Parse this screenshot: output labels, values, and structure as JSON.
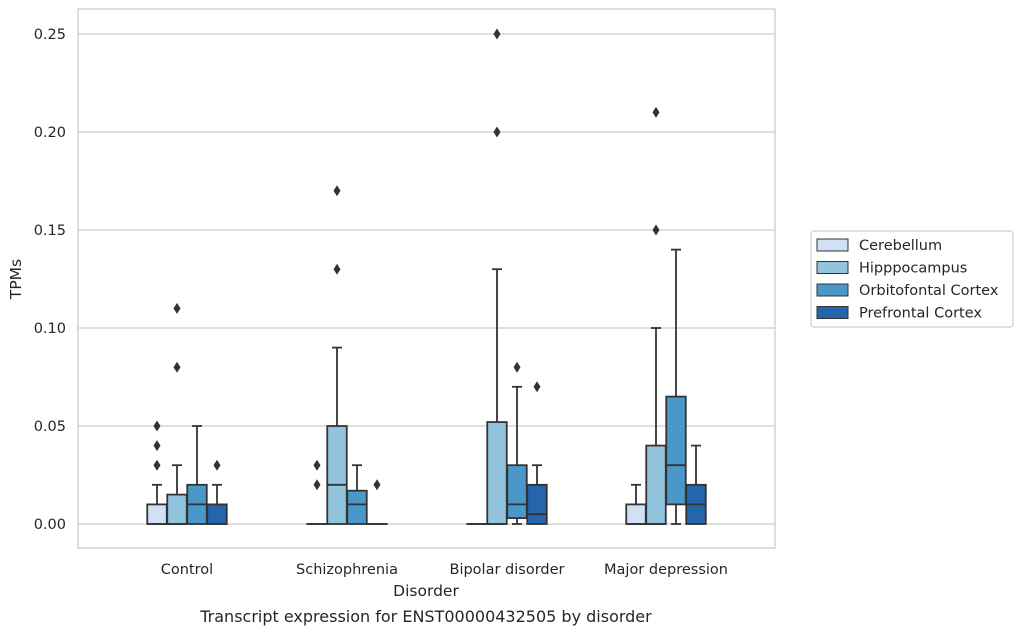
{
  "chart_data": {
    "type": "boxplot",
    "caption": "Transcript expression for ENST00000432505 by disorder",
    "xlabel": "Disorder",
    "ylabel": "TPMs",
    "ylim": [
      -0.012,
      0.263
    ],
    "yticks": [
      "0.00",
      "0.05",
      "0.10",
      "0.15",
      "0.20",
      "0.25"
    ],
    "ytick_values": [
      0,
      0.05,
      0.1,
      0.15,
      0.2,
      0.25
    ],
    "grid": "horizontal",
    "legend_position": "right",
    "categories": [
      "Control",
      "Schizophrenia",
      "Bipolar disorder",
      "Major depression"
    ],
    "series": [
      {
        "name": "Cerebellum",
        "color": "#cfe1f2",
        "boxes": [
          {
            "whislo": 0,
            "q1": 0,
            "med": 0,
            "q3": 0.01,
            "whishi": 0.02,
            "fliers": [
              0.03,
              0.04,
              0.05
            ]
          },
          {
            "whislo": 0,
            "q1": 0,
            "med": 0,
            "q3": 0,
            "whishi": 0,
            "fliers": [
              0.02,
              0.03
            ]
          },
          {
            "whislo": 0,
            "q1": 0,
            "med": 0,
            "q3": 0,
            "whishi": 0,
            "fliers": []
          },
          {
            "whislo": 0,
            "q1": 0,
            "med": 0,
            "q3": 0.01,
            "whishi": 0.02,
            "fliers": []
          }
        ]
      },
      {
        "name": "Hipppocampus",
        "color": "#93c4de",
        "boxes": [
          {
            "whislo": 0,
            "q1": 0,
            "med": 0,
            "q3": 0.015,
            "whishi": 0.03,
            "fliers": [
              0.08,
              0.11
            ]
          },
          {
            "whislo": 0,
            "q1": 0,
            "med": 0.02,
            "q3": 0.05,
            "whishi": 0.09,
            "fliers": [
              0.13,
              0.17
            ]
          },
          {
            "whislo": 0,
            "q1": 0,
            "med": 0,
            "q3": 0.052,
            "whishi": 0.13,
            "fliers": [
              0.2,
              0.25
            ]
          },
          {
            "whislo": 0,
            "q1": 0,
            "med": 0,
            "q3": 0.04,
            "whishi": 0.1,
            "fliers": [
              0.15,
              0.21
            ]
          }
        ]
      },
      {
        "name": "Orbitofontal Cortex",
        "color": "#4a98c9",
        "boxes": [
          {
            "whislo": 0,
            "q1": 0,
            "med": 0.01,
            "q3": 0.02,
            "whishi": 0.05,
            "fliers": []
          },
          {
            "whislo": 0,
            "q1": 0,
            "med": 0.01,
            "q3": 0.017,
            "whishi": 0.03,
            "fliers": []
          },
          {
            "whislo": 0,
            "q1": 0.003,
            "med": 0.01,
            "q3": 0.03,
            "whishi": 0.07,
            "fliers": [
              0.08
            ]
          },
          {
            "whislo": 0,
            "q1": 0.01,
            "med": 0.03,
            "q3": 0.065,
            "whishi": 0.14,
            "fliers": []
          }
        ]
      },
      {
        "name": "Prefrontal Cortex",
        "color": "#2465ab",
        "boxes": [
          {
            "whislo": 0,
            "q1": 0,
            "med": 0,
            "q3": 0.01,
            "whishi": 0.02,
            "fliers": [
              0.03
            ]
          },
          {
            "whislo": 0,
            "q1": 0,
            "med": 0,
            "q3": 0,
            "whishi": 0,
            "fliers": [
              0.02
            ]
          },
          {
            "whislo": 0,
            "q1": 0,
            "med": 0.005,
            "q3": 0.02,
            "whishi": 0.03,
            "fliers": [
              0.07
            ]
          },
          {
            "whislo": 0,
            "q1": 0,
            "med": 0.01,
            "q3": 0.02,
            "whishi": 0.04,
            "fliers": []
          }
        ]
      }
    ]
  },
  "colors": {
    "grid": "#cccccc",
    "frame": "#cccccc",
    "edge": "#333333"
  }
}
